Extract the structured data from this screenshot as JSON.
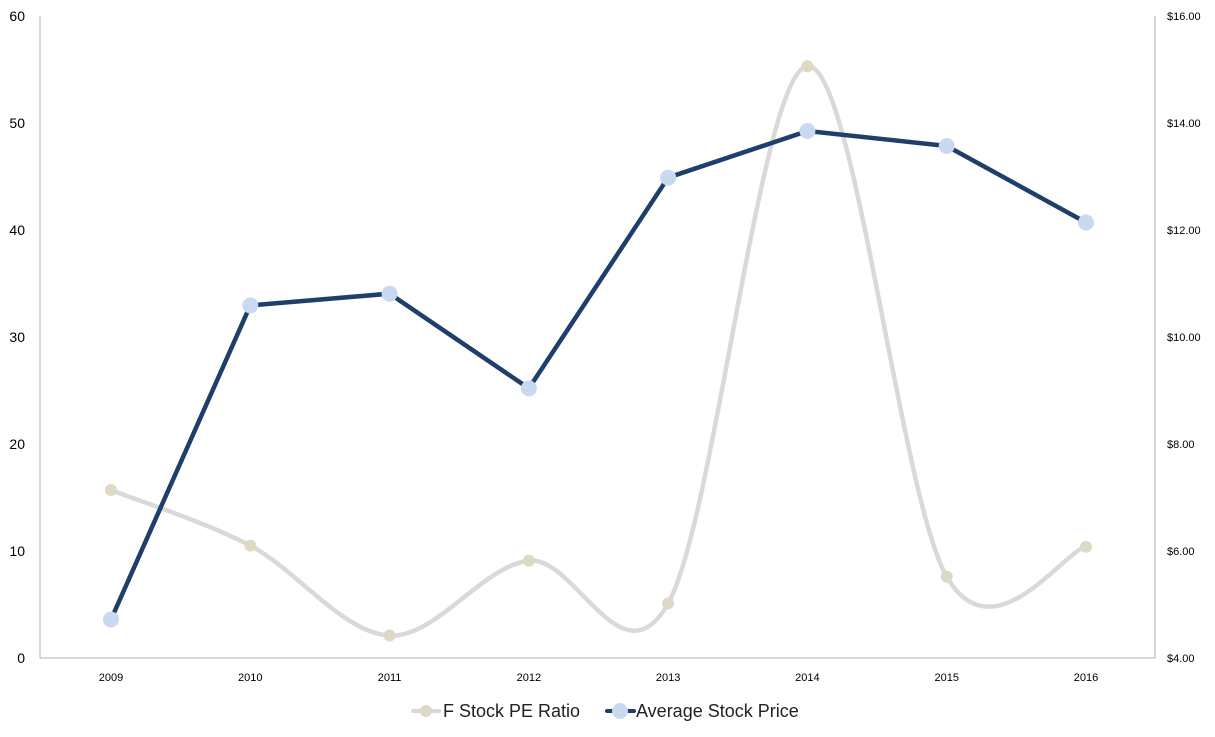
{
  "chart_data": {
    "type": "line",
    "categories": [
      "2009",
      "2010",
      "2011",
      "2012",
      "2013",
      "2014",
      "2015",
      "2016"
    ],
    "series": [
      {
        "name": "F Stock PE Ratio",
        "axis": "left",
        "smooth": true,
        "color": "#d9d9d9",
        "marker_color": "#ddd9c4",
        "values": [
          15.7,
          10.5,
          2.1,
          9.1,
          5.1,
          55.3,
          7.6,
          10.4
        ]
      },
      {
        "name": "Average Stock Price",
        "axis": "right",
        "smooth": false,
        "color": "#1f3f6b",
        "marker_color": "#c9d9f1",
        "values": [
          4.72,
          10.59,
          10.81,
          9.04,
          12.98,
          13.85,
          13.57,
          12.14
        ]
      }
    ],
    "y_left": {
      "min": 0,
      "max": 60,
      "step": 10,
      "ticks": [
        "0",
        "10",
        "20",
        "30",
        "40",
        "50",
        "60"
      ]
    },
    "y_right": {
      "min": 4,
      "max": 16,
      "step": 2,
      "ticks": [
        "$4.00",
        "$6.00",
        "$8.00",
        "$10.00",
        "$12.00",
        "$14.00",
        "$16.00"
      ]
    },
    "legend_position": "bottom-center",
    "grid": false
  }
}
